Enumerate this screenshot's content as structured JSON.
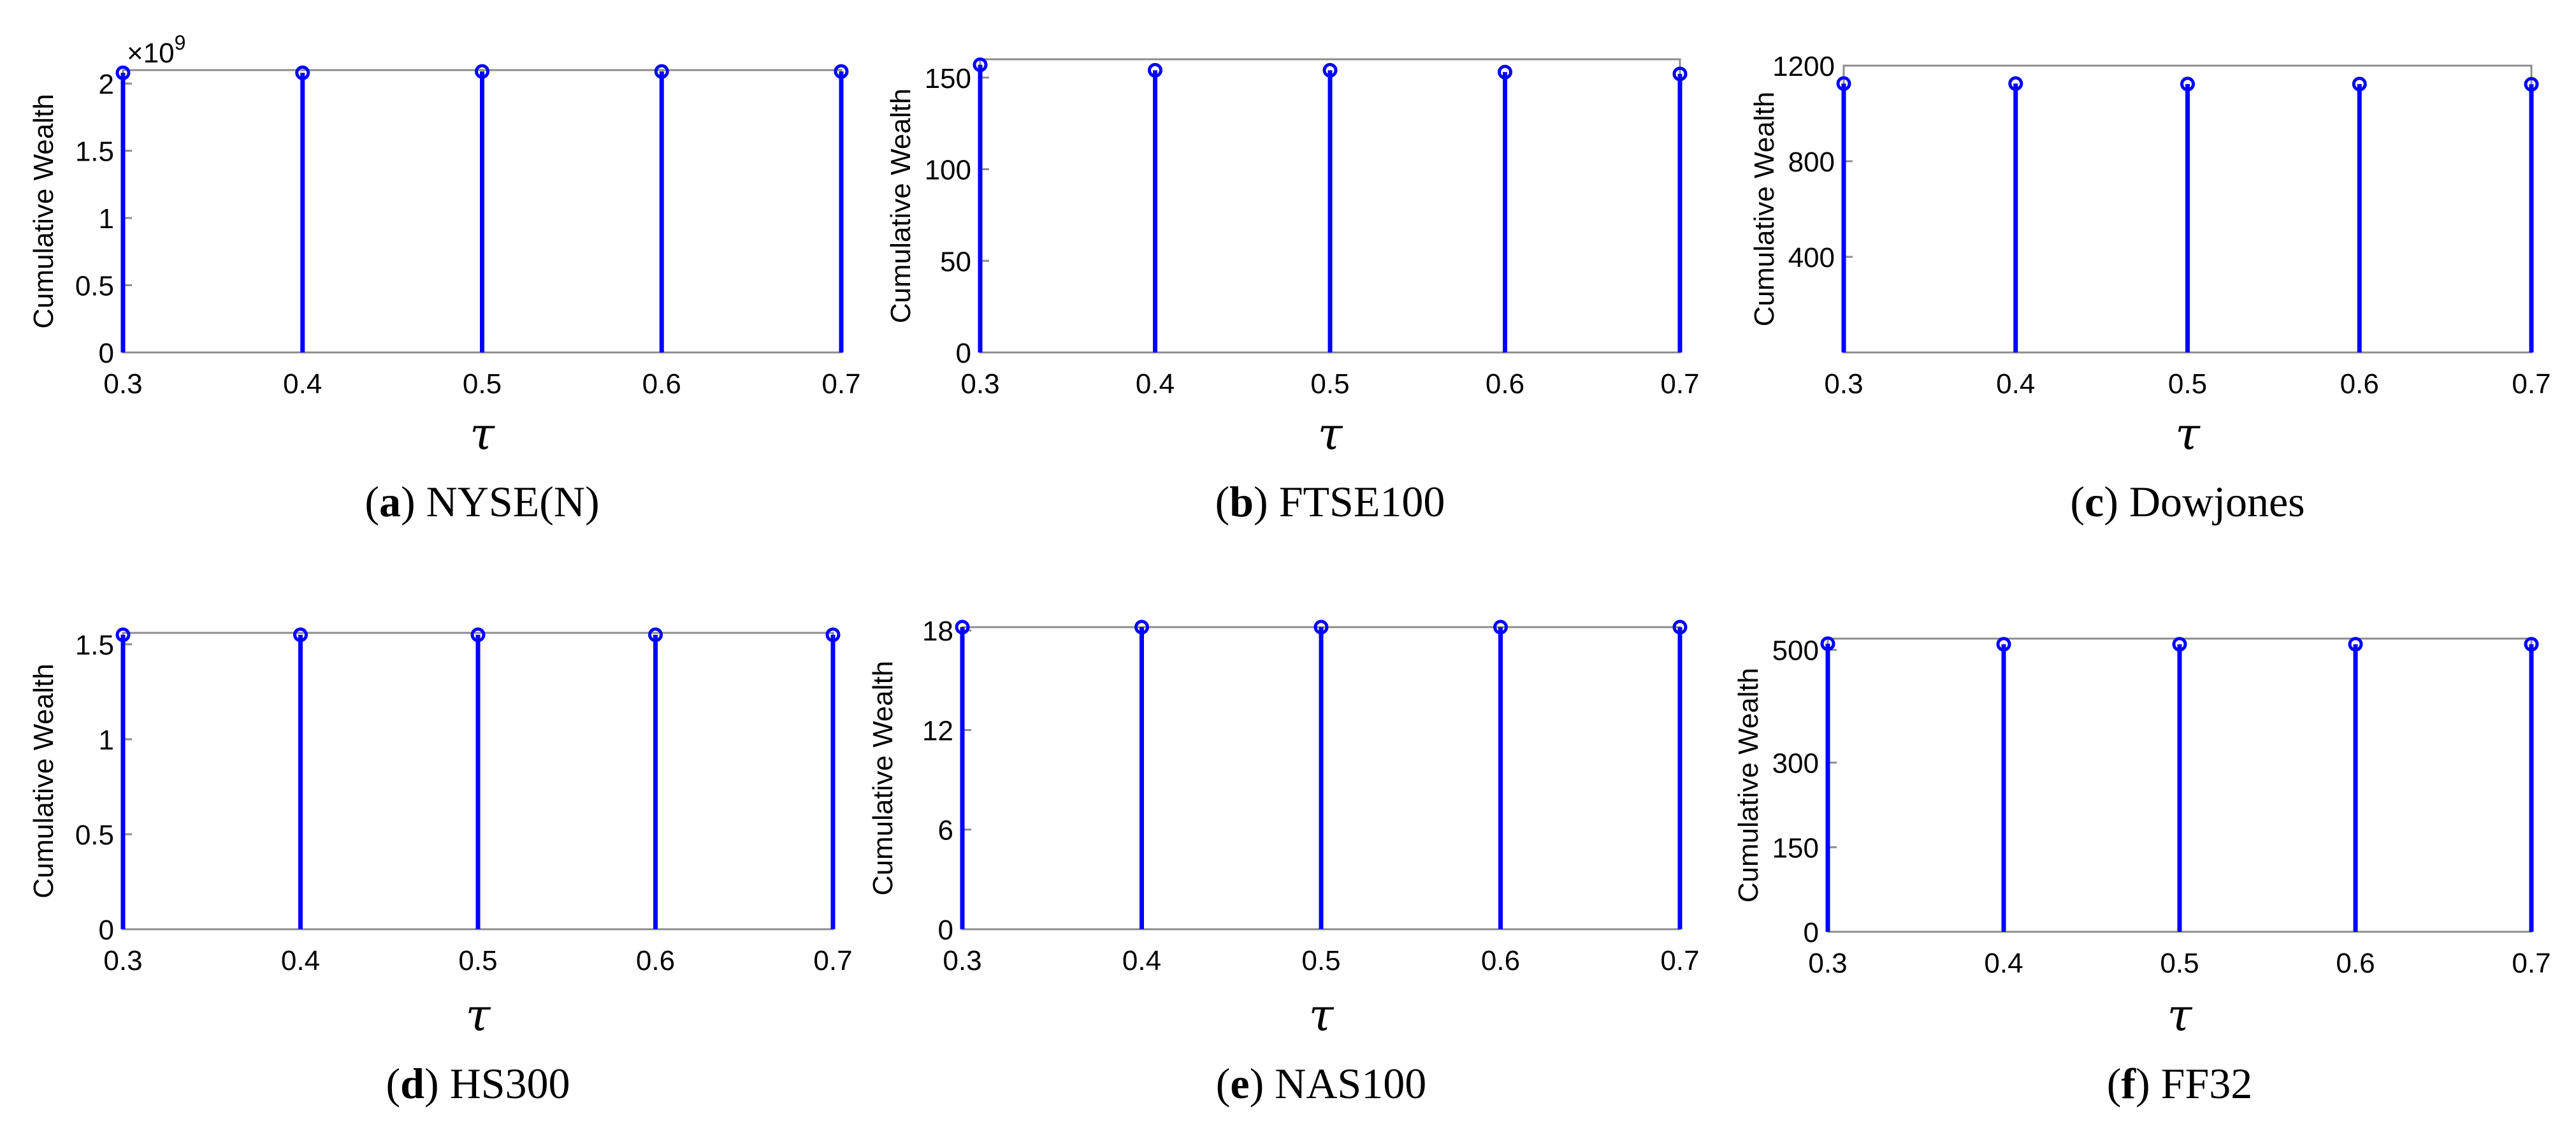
{
  "chart_data": [
    {
      "type": "stem",
      "caption_letter": "a",
      "caption_text": "NYSE(N)",
      "xlabel": "τ",
      "ylabel": "Cumulative Wealth",
      "y_exponent_label": "×10",
      "y_exponent_power": "9",
      "x": [
        0.3,
        0.4,
        0.5,
        0.6,
        0.7
      ],
      "y": [
        2.08,
        2.08,
        2.09,
        2.09,
        2.09
      ],
      "xlim": [
        0.3,
        0.7
      ],
      "ylim": [
        0,
        2.1
      ],
      "xticks": [
        0.3,
        0.4,
        0.5,
        0.6,
        0.7
      ],
      "xtick_labels": [
        "0.3",
        "0.4",
        "0.5",
        "0.6",
        "0.7"
      ],
      "yticks": [
        0,
        0.5,
        1,
        1.5,
        2
      ],
      "ytick_labels": [
        "0",
        "0.5",
        "1",
        "1.5",
        "2"
      ],
      "color": "#0000ff"
    },
    {
      "type": "stem",
      "caption_letter": "b",
      "caption_text": "FTSE100",
      "xlabel": "τ",
      "ylabel": "Cumulative Wealth",
      "x": [
        0.3,
        0.4,
        0.5,
        0.6,
        0.7
      ],
      "y": [
        157,
        154,
        154,
        153,
        152
      ],
      "xlim": [
        0.3,
        0.7
      ],
      "ylim": [
        0,
        160
      ],
      "xticks": [
        0.3,
        0.4,
        0.5,
        0.6,
        0.7
      ],
      "xtick_labels": [
        "0.3",
        "0.4",
        "0.5",
        "0.6",
        "0.7"
      ],
      "yticks": [
        0,
        50,
        100,
        150
      ],
      "ytick_labels": [
        "0",
        "50",
        "100",
        "150"
      ],
      "color": "#0000ff"
    },
    {
      "type": "stem",
      "caption_letter": "c",
      "caption_text": "Dowjones",
      "xlabel": "τ",
      "ylabel": "Cumulative Wealth",
      "x": [
        0.3,
        0.4,
        0.5,
        0.6,
        0.7
      ],
      "y": [
        1125,
        1125,
        1123,
        1123,
        1122
      ],
      "xlim": [
        0.3,
        0.7
      ],
      "ylim": [
        0,
        1200
      ],
      "xticks": [
        0.3,
        0.4,
        0.5,
        0.6,
        0.7
      ],
      "xtick_labels": [
        "0.3",
        "0.4",
        "0.5",
        "0.6",
        "0.7"
      ],
      "yticks": [
        400,
        800,
        1200
      ],
      "ytick_labels": [
        "400",
        "800",
        "1200"
      ],
      "color": "#0000ff"
    },
    {
      "type": "stem",
      "caption_letter": "d",
      "caption_text": "HS300",
      "xlabel": "τ",
      "ylabel": "Cumulative Wealth",
      "x": [
        0.3,
        0.4,
        0.5,
        0.6,
        0.7
      ],
      "y": [
        1.55,
        1.55,
        1.55,
        1.55,
        1.55
      ],
      "xlim": [
        0.3,
        0.7
      ],
      "ylim": [
        0,
        1.56
      ],
      "xticks": [
        0.3,
        0.4,
        0.5,
        0.6,
        0.7
      ],
      "xtick_labels": [
        "0.3",
        "0.4",
        "0.5",
        "0.6",
        "0.7"
      ],
      "yticks": [
        0,
        0.5,
        1,
        1.5
      ],
      "ytick_labels": [
        "0",
        "0.5",
        "1",
        "1.5"
      ],
      "color": "#0000ff"
    },
    {
      "type": "stem",
      "caption_letter": "e",
      "caption_text": "NAS100",
      "xlabel": "τ",
      "ylabel": "Cumulative Wealth",
      "x": [
        0.3,
        0.4,
        0.5,
        0.6,
        0.7
      ],
      "y": [
        18.2,
        18.2,
        18.2,
        18.2,
        18.2
      ],
      "xlim": [
        0.3,
        0.7
      ],
      "ylim": [
        0,
        18.2
      ],
      "xticks": [
        0.3,
        0.4,
        0.5,
        0.6,
        0.7
      ],
      "xtick_labels": [
        "0.3",
        "0.4",
        "0.5",
        "0.6",
        "0.7"
      ],
      "yticks": [
        0,
        6,
        12,
        18
      ],
      "ytick_labels": [
        "0",
        "6",
        "12",
        "18"
      ],
      "color": "#0000ff"
    },
    {
      "type": "stem",
      "caption_letter": "f",
      "caption_text": "FF32",
      "xlabel": "τ",
      "ylabel": "Cumulative Wealth",
      "x": [
        0.3,
        0.4,
        0.5,
        0.6,
        0.7
      ],
      "y": [
        511,
        510,
        510,
        510,
        510
      ],
      "xlim": [
        0.3,
        0.7
      ],
      "ylim": [
        0,
        520
      ],
      "xticks": [
        0.3,
        0.4,
        0.5,
        0.6,
        0.7
      ],
      "xtick_labels": [
        "0.3",
        "0.4",
        "0.5",
        "0.6",
        "0.7"
      ],
      "yticks": [
        0,
        150,
        300,
        500
      ],
      "ytick_labels": [
        "0",
        "150",
        "300",
        "500"
      ],
      "color": "#0000ff"
    }
  ]
}
